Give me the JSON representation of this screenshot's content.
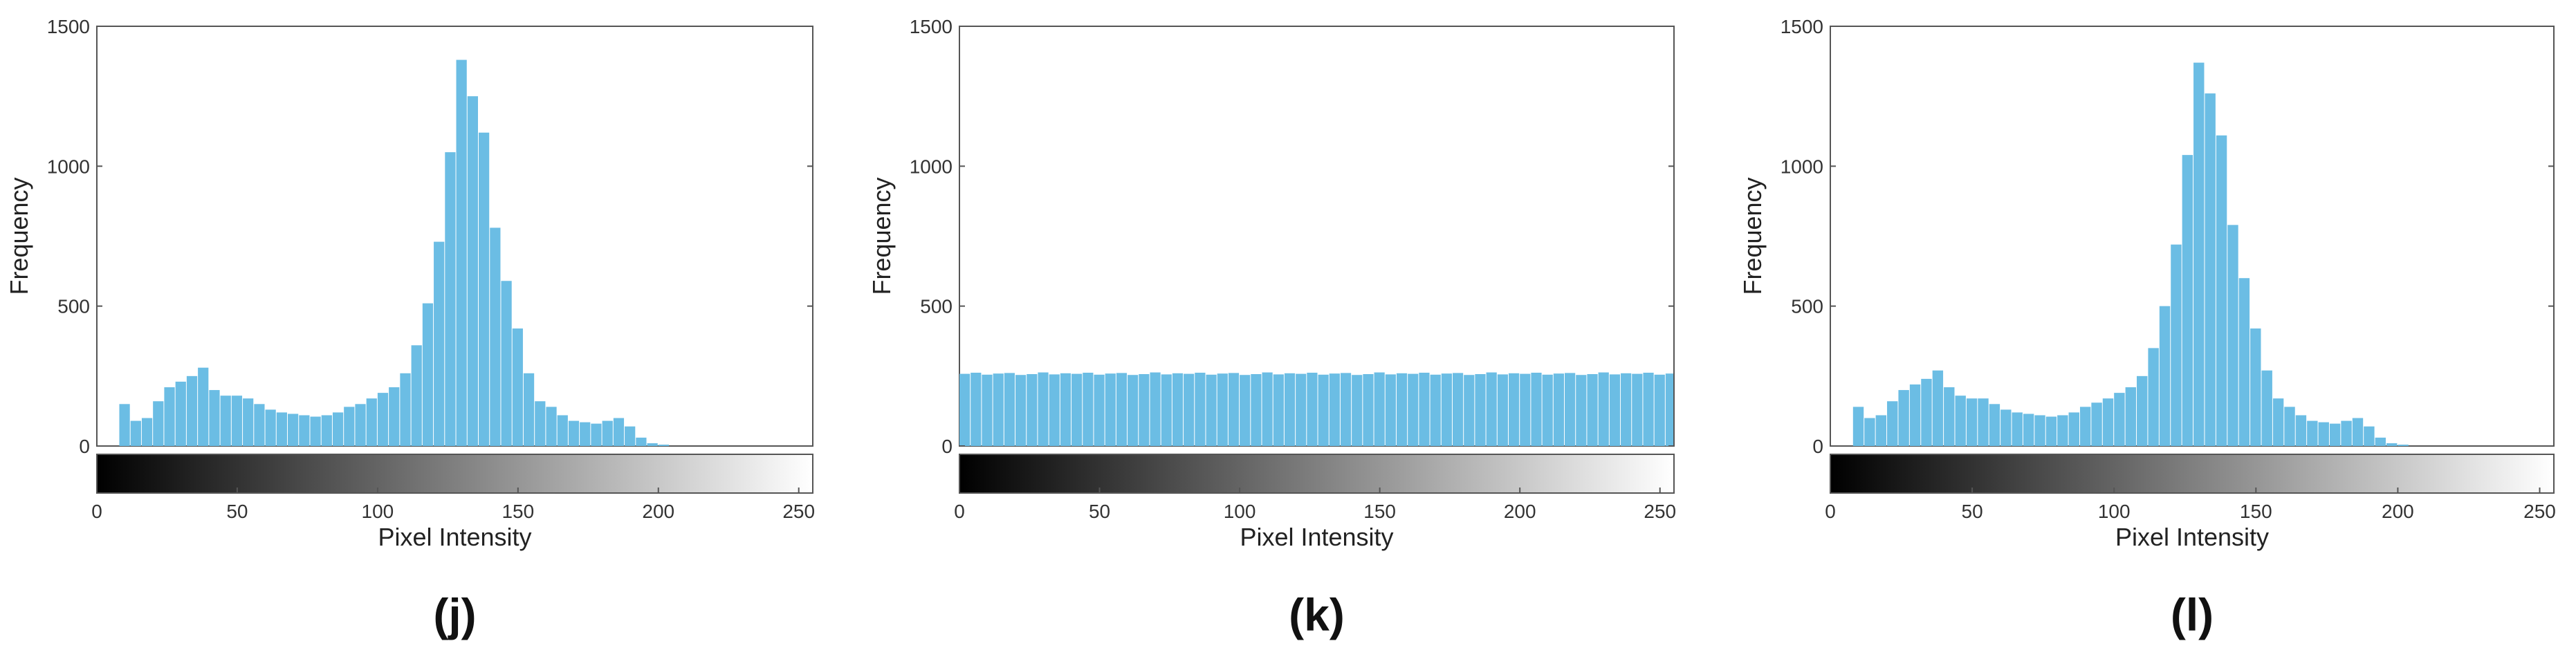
{
  "colors": {
    "bar": "#6bbde4",
    "frame": "#555555"
  },
  "chart_data": [
    {
      "panel_label": "(j)",
      "type": "bar",
      "subtype": "histogram",
      "xlabel": "Pixel Intensity",
      "ylabel": "Frequency",
      "xlim": [
        0,
        255
      ],
      "ylim": [
        0,
        1500
      ],
      "xticks": [
        "0",
        "50",
        "100",
        "150",
        "200",
        "250"
      ],
      "yticks": [
        "0",
        "500",
        "1000",
        "1500"
      ],
      "colorbar": "grayscale 0-255",
      "grid": false,
      "x": [
        0,
        4,
        8,
        12,
        16,
        20,
        24,
        28,
        32,
        36,
        40,
        44,
        48,
        52,
        56,
        60,
        64,
        68,
        72,
        76,
        80,
        84,
        88,
        92,
        96,
        100,
        104,
        108,
        112,
        116,
        120,
        124,
        128,
        132,
        136,
        140,
        144,
        148,
        152,
        156,
        160,
        164,
        168,
        172,
        176,
        180,
        184,
        188,
        192,
        196,
        200,
        204,
        208,
        212,
        216,
        220,
        224,
        228,
        232,
        236,
        240,
        244,
        248,
        252
      ],
      "values": [
        0,
        0,
        150,
        90,
        100,
        160,
        210,
        230,
        250,
        280,
        200,
        180,
        180,
        170,
        150,
        130,
        120,
        115,
        110,
        105,
        110,
        120,
        140,
        150,
        170,
        190,
        210,
        260,
        360,
        510,
        730,
        1050,
        1380,
        1250,
        1120,
        780,
        590,
        420,
        260,
        160,
        140,
        110,
        90,
        85,
        80,
        90,
        100,
        70,
        30,
        10,
        5,
        0,
        0,
        0,
        0,
        0,
        0,
        0,
        0,
        0,
        0,
        0,
        0,
        0
      ]
    },
    {
      "panel_label": "(k)",
      "type": "bar",
      "subtype": "histogram",
      "xlabel": "Pixel Intensity",
      "ylabel": "Frequency",
      "xlim": [
        0,
        255
      ],
      "ylim": [
        0,
        1500
      ],
      "xticks": [
        "0",
        "50",
        "100",
        "150",
        "200",
        "250"
      ],
      "yticks": [
        "0",
        "500",
        "1000",
        "1500"
      ],
      "colorbar": "grayscale 0-255",
      "grid": false,
      "x": [
        0,
        4,
        8,
        12,
        16,
        20,
        24,
        28,
        32,
        36,
        40,
        44,
        48,
        52,
        56,
        60,
        64,
        68,
        72,
        76,
        80,
        84,
        88,
        92,
        96,
        100,
        104,
        108,
        112,
        116,
        120,
        124,
        128,
        132,
        136,
        140,
        144,
        148,
        152,
        156,
        160,
        164,
        168,
        172,
        176,
        180,
        184,
        188,
        192,
        196,
        200,
        204,
        208,
        212,
        216,
        220,
        224,
        228,
        232,
        236,
        240,
        244,
        248,
        252
      ],
      "values": [
        258,
        262,
        255,
        259,
        261,
        254,
        257,
        263,
        256,
        260,
        258,
        262,
        255,
        259,
        261,
        254,
        257,
        263,
        256,
        260,
        258,
        262,
        255,
        259,
        261,
        254,
        257,
        263,
        256,
        260,
        258,
        262,
        255,
        259,
        261,
        254,
        257,
        263,
        256,
        260,
        258,
        262,
        255,
        259,
        261,
        254,
        257,
        263,
        256,
        260,
        258,
        262,
        255,
        259,
        261,
        254,
        257,
        263,
        256,
        260,
        258,
        262,
        255,
        259
      ]
    },
    {
      "panel_label": "(l)",
      "type": "bar",
      "subtype": "histogram",
      "xlabel": "Pixel Intensity",
      "ylabel": "Frequency",
      "xlim": [
        0,
        255
      ],
      "ylim": [
        0,
        1500
      ],
      "xticks": [
        "0",
        "50",
        "100",
        "150",
        "200",
        "250"
      ],
      "yticks": [
        "0",
        "500",
        "1000",
        "1500"
      ],
      "colorbar": "grayscale 0-255",
      "grid": false,
      "x": [
        0,
        4,
        8,
        12,
        16,
        20,
        24,
        28,
        32,
        36,
        40,
        44,
        48,
        52,
        56,
        60,
        64,
        68,
        72,
        76,
        80,
        84,
        88,
        92,
        96,
        100,
        104,
        108,
        112,
        116,
        120,
        124,
        128,
        132,
        136,
        140,
        144,
        148,
        152,
        156,
        160,
        164,
        168,
        172,
        176,
        180,
        184,
        188,
        192,
        196,
        200,
        204,
        208,
        212,
        216,
        220,
        224,
        228,
        232,
        236,
        240,
        244,
        248,
        252
      ],
      "values": [
        0,
        0,
        140,
        100,
        110,
        160,
        200,
        220,
        240,
        270,
        210,
        180,
        170,
        170,
        150,
        130,
        120,
        115,
        110,
        105,
        110,
        120,
        140,
        155,
        170,
        190,
        210,
        250,
        350,
        500,
        720,
        1040,
        1370,
        1260,
        1110,
        790,
        600,
        420,
        270,
        170,
        140,
        110,
        90,
        85,
        80,
        90,
        100,
        70,
        30,
        10,
        5,
        0,
        0,
        0,
        0,
        0,
        0,
        0,
        0,
        0,
        0,
        0,
        0,
        0
      ]
    }
  ]
}
